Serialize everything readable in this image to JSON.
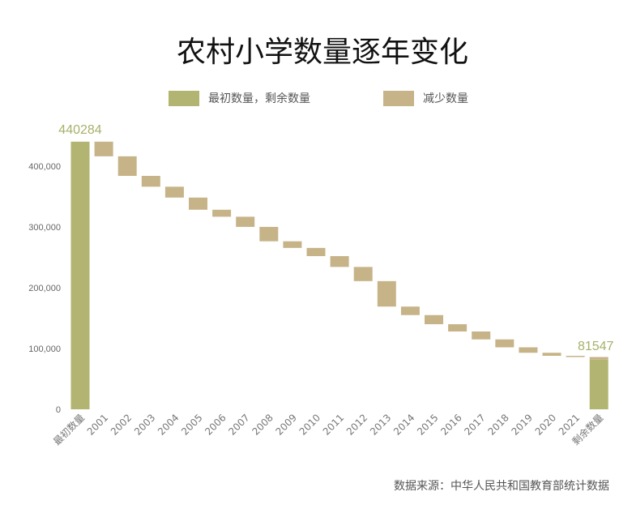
{
  "title": "农村小学数量逐年变化",
  "legend": {
    "initial_remaining": "最初数量，剩余数量",
    "decrease": "减少数量"
  },
  "source": "数据来源：中华人民共和国教育部统计数据",
  "colors": {
    "total": "#b2b572",
    "decrease": "#c7b388",
    "label": "#a8b06a"
  },
  "chart_data": {
    "type": "bar",
    "subtype": "waterfall",
    "categories": [
      "最初数量",
      "2001",
      "2002",
      "2003",
      "2004",
      "2005",
      "2006",
      "2007",
      "2008",
      "2009",
      "2010",
      "2011",
      "2012",
      "2013",
      "2014",
      "2015",
      "2016",
      "2017",
      "2018",
      "2019",
      "2020",
      "2021",
      "剩余数量"
    ],
    "initial": 440284,
    "final": 81547,
    "decreases": [
      416200,
      384000,
      366200,
      348300,
      328300,
      316800,
      300100,
      276400,
      265500,
      252000,
      234200,
      210900,
      169000,
      155000,
      140000,
      128000,
      115000,
      102000,
      93000,
      88000,
      86000,
      81547
    ],
    "initial_label": "440284",
    "final_label": "81547",
    "yticks": [
      "0",
      "100,000",
      "200,000",
      "300,000",
      "400,000"
    ],
    "ytick_values": [
      0,
      100000,
      200000,
      300000,
      400000
    ],
    "ylim": [
      0,
      460000
    ],
    "legend_position": "top",
    "grid": false
  }
}
